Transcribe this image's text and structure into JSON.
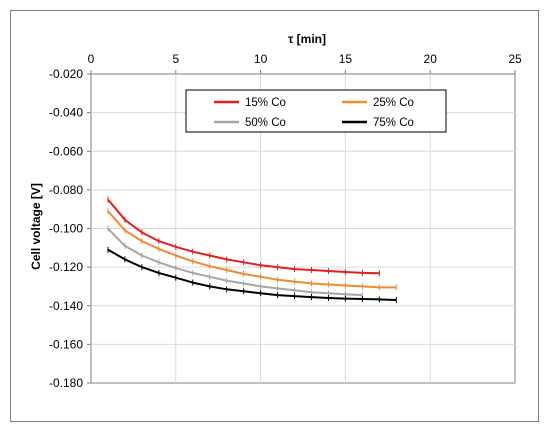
{
  "chart_data": {
    "type": "line",
    "xlabel": "τ [min]",
    "ylabel": "Cell voltage [V]",
    "xlim": [
      0,
      25
    ],
    "ylim": [
      -0.18,
      -0.02
    ],
    "x_ticks": [
      "0",
      "5",
      "10",
      "15",
      "20",
      "25"
    ],
    "y_ticks": [
      "-0.020",
      "-0.040",
      "-0.060",
      "-0.080",
      "-0.100",
      "-0.120",
      "-0.140",
      "-0.160",
      "-0.180"
    ],
    "x_axis_position": "top",
    "grid": true,
    "legend_position": "top-center",
    "series": [
      {
        "name": "15% Co",
        "color": "#e02020",
        "x": [
          1,
          2,
          3,
          4,
          5,
          6,
          7,
          8,
          9,
          10,
          11,
          12,
          13,
          14,
          15,
          16,
          17
        ],
        "y": [
          -0.085,
          -0.0955,
          -0.102,
          -0.1065,
          -0.1095,
          -0.112,
          -0.114,
          -0.116,
          -0.1175,
          -0.119,
          -0.12,
          -0.121,
          -0.1215,
          -0.122,
          -0.1225,
          -0.123,
          -0.1232
        ]
      },
      {
        "name": "25% Co",
        "color": "#f08a30",
        "x": [
          1,
          2,
          3,
          4,
          5,
          6,
          7,
          8,
          9,
          10,
          11,
          12,
          13,
          14,
          15,
          16,
          17,
          18
        ],
        "y": [
          -0.091,
          -0.101,
          -0.1065,
          -0.1105,
          -0.114,
          -0.117,
          -0.1195,
          -0.1215,
          -0.1235,
          -0.125,
          -0.1265,
          -0.1275,
          -0.1285,
          -0.129,
          -0.1295,
          -0.13,
          -0.1305,
          -0.1305
        ]
      },
      {
        "name": "50% Co",
        "color": "#a6a6a6",
        "x": [
          1,
          2,
          3,
          4,
          5,
          6,
          7,
          8,
          9,
          10,
          11,
          12,
          13,
          14,
          15,
          16
        ],
        "y": [
          -0.1,
          -0.109,
          -0.114,
          -0.1175,
          -0.1205,
          -0.123,
          -0.125,
          -0.127,
          -0.1285,
          -0.13,
          -0.131,
          -0.132,
          -0.133,
          -0.1335,
          -0.134,
          -0.1345
        ]
      },
      {
        "name": "75% Co",
        "color": "#000000",
        "x": [
          1,
          2,
          3,
          4,
          5,
          6,
          7,
          8,
          9,
          10,
          11,
          12,
          13,
          14,
          15,
          16,
          17,
          18
        ],
        "y": [
          -0.111,
          -0.116,
          -0.12,
          -0.123,
          -0.1255,
          -0.128,
          -0.13,
          -0.1315,
          -0.1325,
          -0.1335,
          -0.1345,
          -0.135,
          -0.1355,
          -0.136,
          -0.1363,
          -0.1365,
          -0.1367,
          -0.137
        ]
      }
    ]
  }
}
